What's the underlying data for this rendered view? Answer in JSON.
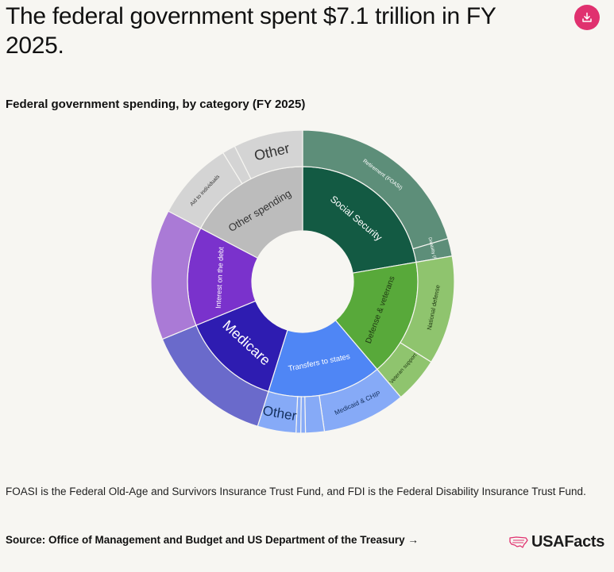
{
  "header": {
    "title": "The federal government spent $7.1 trillion in FY 2025.",
    "download_icon": "download-icon"
  },
  "chart_data": {
    "type": "sunburst",
    "title": "Federal government spending, by category (FY 2025)",
    "inner": [
      {
        "label": "Social Security",
        "value": 22.3,
        "color": "#135a43",
        "text_color": "#ffffff",
        "children": [
          {
            "label": "Retirement (FOASI)",
            "value": 20.4,
            "color": "#5d8e79",
            "text_color": "#ffffff"
          },
          {
            "label": "Disability (FDI)",
            "value": 1.9,
            "color": "#5d8e79",
            "text_color": "#ffffff"
          }
        ]
      },
      {
        "label": "Defense & veterans",
        "value": 16.5,
        "color": "#58a93a",
        "text_color": "#1f3a12",
        "children": [
          {
            "label": "National defense",
            "value": 11.6,
            "color": "#8fc46e",
            "text_color": "#1f3a12"
          },
          {
            "label": "Veteran support",
            "value": 4.9,
            "color": "#8fc46e",
            "text_color": "#1f3a12"
          }
        ]
      },
      {
        "label": "Transfers to states",
        "value": 16.0,
        "color": "#4f86f5",
        "text_color": "#ffffff",
        "children": [
          {
            "label": "Medicaid & CHIP",
            "value": 8.9,
            "color": "#86aaf7",
            "text_color": "#14305e"
          },
          {
            "label": "",
            "value": 2.0,
            "color": "#86aaf7",
            "text_color": "#14305e"
          },
          {
            "label": "",
            "value": 0.5,
            "color": "#86aaf7",
            "text_color": "#14305e"
          },
          {
            "label": "",
            "value": 0.5,
            "color": "#86aaf7",
            "text_color": "#14305e"
          },
          {
            "label": "Other",
            "value": 4.1,
            "color": "#86aaf7",
            "text_color": "#14305e"
          }
        ]
      },
      {
        "label": "Medicare",
        "value": 14.0,
        "color": "#2e1cb1",
        "text_color": "#ffffff",
        "children": [
          {
            "label": "",
            "value": 14.0,
            "color": "#6a6acb",
            "text_color": "#ffffff"
          }
        ]
      },
      {
        "label": "Interest on the debt",
        "value": 13.9,
        "color": "#7a32cc",
        "text_color": "#ffffff",
        "children": [
          {
            "label": "",
            "value": 13.9,
            "color": "#aa7ad6",
            "text_color": "#ffffff"
          }
        ]
      },
      {
        "label": "Other spending",
        "value": 17.3,
        "color": "#bcbcbc",
        "text_color": "#333333",
        "children": [
          {
            "label": "Aid to individuals",
            "value": 8.5,
            "color": "#d4d4d4",
            "text_color": "#333333"
          },
          {
            "label": "",
            "value": 1.4,
            "color": "#d4d4d4",
            "text_color": "#333333"
          },
          {
            "label": "Other",
            "value": 7.4,
            "color": "#d4d4d4",
            "text_color": "#333333"
          }
        ]
      }
    ]
  },
  "footer": {
    "note": "FOASI is the Federal Old-Age and Survivors Insurance Trust Fund, and FDI is the Federal Disability Insurance Trust Fund.",
    "source": "Source: Office of Management and Budget and US Department of the Treasury →",
    "logo_text": "USAFacts",
    "logo_icon": "us-map-icon",
    "brand_color": "#e0316f"
  }
}
